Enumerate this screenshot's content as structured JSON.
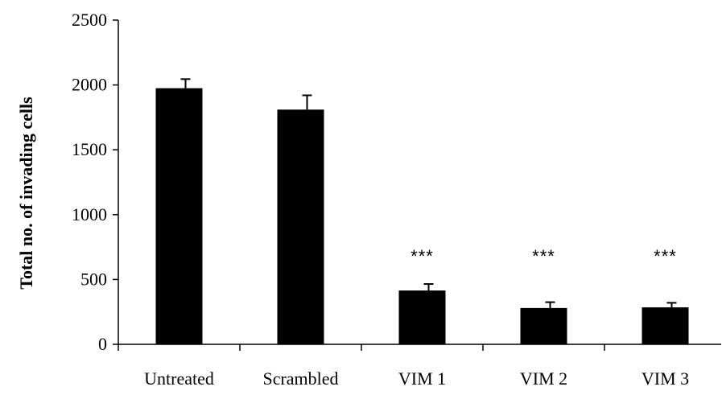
{
  "chart_data": {
    "type": "bar",
    "title": "",
    "xlabel": "",
    "ylabel": "Total no. of invading cells",
    "categories": [
      "Untreated",
      "Scrambled",
      "VIM 1",
      "VIM 2",
      "VIM 3"
    ],
    "values": [
      1975,
      1810,
      415,
      280,
      285
    ],
    "errors": [
      70,
      110,
      50,
      45,
      35
    ],
    "annotations": [
      "",
      "",
      "***",
      "***",
      "***"
    ],
    "ylim": [
      0,
      2500
    ],
    "yticks": [
      "0",
      "500",
      "1000",
      "1500",
      "2000",
      "2500"
    ],
    "bar_color": "#000000",
    "grid": false,
    "legend": "none"
  }
}
